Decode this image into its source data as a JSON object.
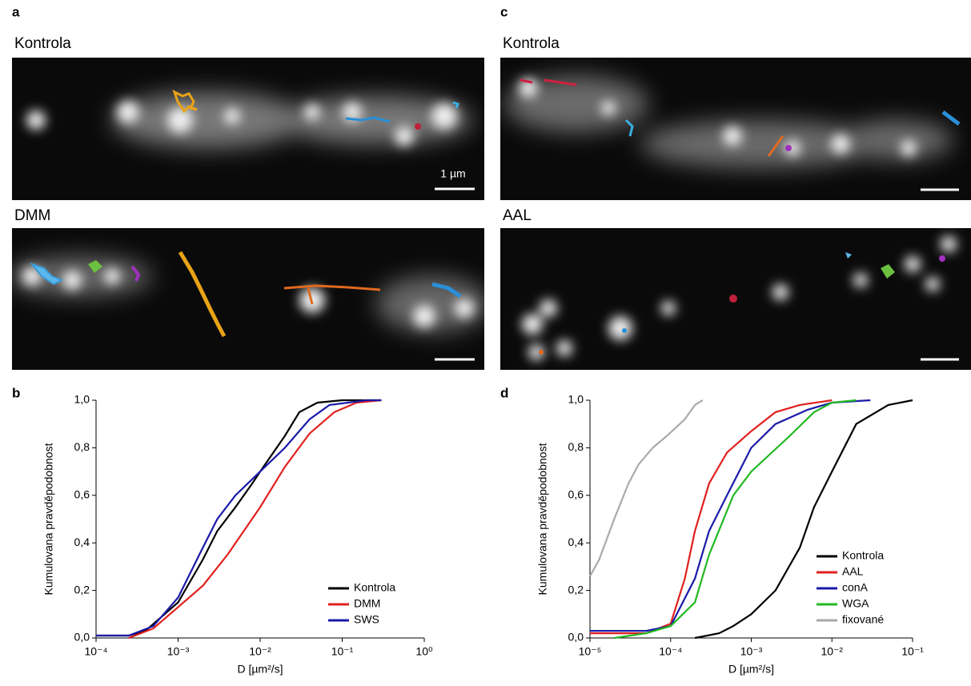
{
  "panel_labels": [
    "a",
    "b",
    "c",
    "d"
  ],
  "image_titles": [
    "Kontrola",
    "DMM",
    "Kontrola",
    "AAL"
  ],
  "scale_label": "1 µm",
  "chart_data": [
    {
      "type": "line",
      "log_x": true,
      "legend": "lower right",
      "xlabel": "D [µm²/s]",
      "ylabel": "Kumulovana pravděpodobnost",
      "xlim": [
        0.0001,
        1
      ],
      "xticks": [
        {
          "value": 0.0001,
          "label": "10⁻⁴"
        },
        {
          "value": 0.001,
          "label": "10⁻³"
        },
        {
          "value": 0.01,
          "label": "10⁻²"
        },
        {
          "value": 0.1,
          "label": "10⁻¹"
        },
        {
          "value": 1,
          "label": "10⁰"
        }
      ],
      "ylim": [
        0,
        1
      ],
      "yticks": [
        {
          "value": 0,
          "label": "0,0"
        },
        {
          "value": 0.2,
          "label": "0,2"
        },
        {
          "value": 0.4,
          "label": "0,4"
        },
        {
          "value": 0.6,
          "label": "0,6"
        },
        {
          "value": 0.8,
          "label": "0,8"
        },
        {
          "value": 1,
          "label": "1,0"
        }
      ],
      "series": [
        {
          "name": "Kontrola",
          "color": "#000000",
          "x": [
            0.0001,
            0.00025,
            0.0004,
            0.001,
            0.002,
            0.003,
            0.005,
            0.008,
            0.01,
            0.02,
            0.03,
            0.05,
            0.1,
            0.3
          ],
          "values": [
            0.01,
            0.01,
            0.03,
            0.15,
            0.33,
            0.45,
            0.55,
            0.65,
            0.7,
            0.85,
            0.95,
            0.99,
            1.0,
            1.0
          ]
        },
        {
          "name": "DMM",
          "color": "#e0201e",
          "x": [
            0.00025,
            0.0005,
            0.001,
            0.002,
            0.004,
            0.01,
            0.02,
            0.04,
            0.08,
            0.15,
            0.3
          ],
          "values": [
            0,
            0.04,
            0.13,
            0.22,
            0.35,
            0.55,
            0.72,
            0.86,
            0.95,
            0.99,
            1.0
          ]
        },
        {
          "name": "SWS",
          "color": "#1a1aa8",
          "x": [
            0.0001,
            0.00025,
            0.0005,
            0.001,
            0.002,
            0.003,
            0.005,
            0.01,
            0.02,
            0.04,
            0.07,
            0.2,
            0.3
          ],
          "values": [
            0.01,
            0.01,
            0.05,
            0.17,
            0.38,
            0.5,
            0.6,
            0.7,
            0.8,
            0.92,
            0.98,
            1.0,
            1.0
          ]
        }
      ]
    },
    {
      "type": "line",
      "log_x": true,
      "legend": "lower right",
      "xlabel": "D [µm²/s]",
      "ylabel": "Kumulovana pravděpodobnost",
      "xlim": [
        1e-05,
        0.1
      ],
      "xticks": [
        {
          "value": 1e-05,
          "label": "10⁻⁵"
        },
        {
          "value": 0.0001,
          "label": "10⁻⁴"
        },
        {
          "value": 0.001,
          "label": "10⁻³"
        },
        {
          "value": 0.01,
          "label": "10⁻²"
        },
        {
          "value": 0.1,
          "label": "10⁻¹"
        }
      ],
      "ylim": [
        0,
        1
      ],
      "yticks": [
        {
          "value": 0,
          "label": "0,0"
        },
        {
          "value": 0.2,
          "label": "0,2"
        },
        {
          "value": 0.4,
          "label": "0,4"
        },
        {
          "value": 0.6,
          "label": "0,6"
        },
        {
          "value": 0.8,
          "label": "0,8"
        },
        {
          "value": 1,
          "label": "1,0"
        }
      ],
      "series": [
        {
          "name": "Kontrola",
          "color": "#000000",
          "x": [
            0.0002,
            0.0004,
            0.0006,
            0.001,
            0.002,
            0.004,
            0.006,
            0.01,
            0.02,
            0.05,
            0.1
          ],
          "values": [
            0,
            0.02,
            0.05,
            0.1,
            0.2,
            0.38,
            0.55,
            0.7,
            0.9,
            0.98,
            1.0
          ]
        },
        {
          "name": "AAL",
          "color": "#e0201e",
          "x": [
            1e-05,
            5e-05,
            0.0001,
            0.00015,
            0.0002,
            0.0003,
            0.0005,
            0.001,
            0.002,
            0.004,
            0.01
          ],
          "values": [
            0.02,
            0.02,
            0.06,
            0.25,
            0.45,
            0.65,
            0.78,
            0.87,
            0.95,
            0.98,
            1.0
          ]
        },
        {
          "name": "conA",
          "color": "#1a1aa8",
          "x": [
            1e-05,
            5e-05,
            0.0001,
            0.0002,
            0.0003,
            0.0005,
            0.001,
            0.002,
            0.005,
            0.01,
            0.03
          ],
          "values": [
            0.03,
            0.03,
            0.05,
            0.25,
            0.45,
            0.6,
            0.8,
            0.9,
            0.96,
            0.99,
            1.0
          ]
        },
        {
          "name": "WGA",
          "color": "#22b822",
          "x": [
            2e-05,
            5e-05,
            0.0001,
            0.0002,
            0.0003,
            0.0006,
            0.001,
            0.003,
            0.006,
            0.01,
            0.02
          ],
          "values": [
            0,
            0.02,
            0.05,
            0.15,
            0.35,
            0.6,
            0.7,
            0.85,
            0.95,
            0.99,
            1.0
          ]
        },
        {
          "name": "fixované",
          "color": "#aaaaaa",
          "x": [
            1e-05,
            1.3e-05,
            2e-05,
            3e-05,
            4e-05,
            6e-05,
            9e-05,
            0.00015,
            0.0002,
            0.00025
          ],
          "values": [
            0.26,
            0.33,
            0.5,
            0.65,
            0.73,
            0.8,
            0.85,
            0.92,
            0.98,
            1.0
          ]
        }
      ]
    }
  ]
}
